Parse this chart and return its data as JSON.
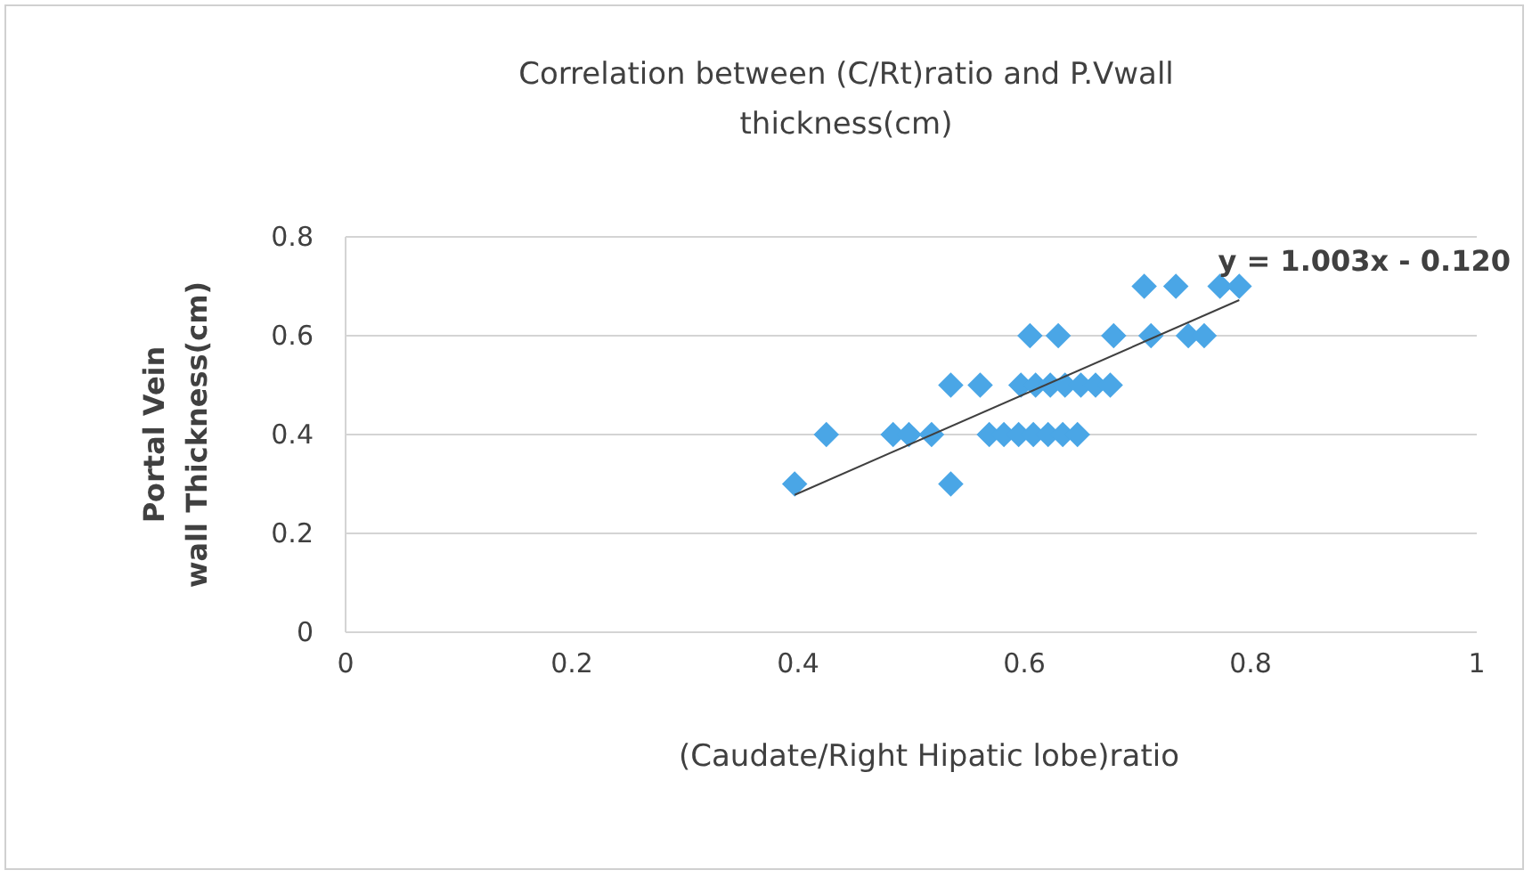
{
  "chart_data": {
    "type": "scatter",
    "title": "Correlation between (C/Rt)ratio and P.Vwall thickness(cm)",
    "xlabel": "(Caudate/Right Hipatic lobe)ratio",
    "ylabel": "Portal Vein wall Thickness(cm)",
    "annotations": [
      "y = 1.003x - 0.120"
    ],
    "xlim": [
      0,
      1
    ],
    "ylim": [
      0,
      0.8
    ],
    "xticks": [
      0,
      0.2,
      0.4,
      0.6,
      0.8,
      1
    ],
    "yticks": [
      0,
      0.2,
      0.4,
      0.6,
      0.8
    ],
    "grid": "y",
    "marker": "diamond",
    "series": [
      {
        "color": "#4aa6e6",
        "x": [
          0.397,
          0.535,
          0.425,
          0.484,
          0.498,
          0.518,
          0.569,
          0.582,
          0.595,
          0.608,
          0.621,
          0.634,
          0.647,
          0.535,
          0.561,
          0.597,
          0.61,
          0.623,
          0.636,
          0.65,
          0.663,
          0.676,
          0.605,
          0.63,
          0.679,
          0.712,
          0.745,
          0.759,
          0.706,
          0.734,
          0.773,
          0.79
        ],
        "values": [
          0.3,
          0.3,
          0.4,
          0.4,
          0.4,
          0.4,
          0.4,
          0.4,
          0.4,
          0.4,
          0.4,
          0.4,
          0.4,
          0.5,
          0.5,
          0.5,
          0.5,
          0.5,
          0.5,
          0.5,
          0.5,
          0.5,
          0.6,
          0.6,
          0.6,
          0.6,
          0.6,
          0.6,
          0.7,
          0.7,
          0.7,
          0.7
        ]
      },
      {
        "type": "line",
        "marker": "none",
        "color": "#404040",
        "x": [
          0.397,
          0.79
        ],
        "values": [
          0.278,
          0.672
        ]
      }
    ]
  }
}
